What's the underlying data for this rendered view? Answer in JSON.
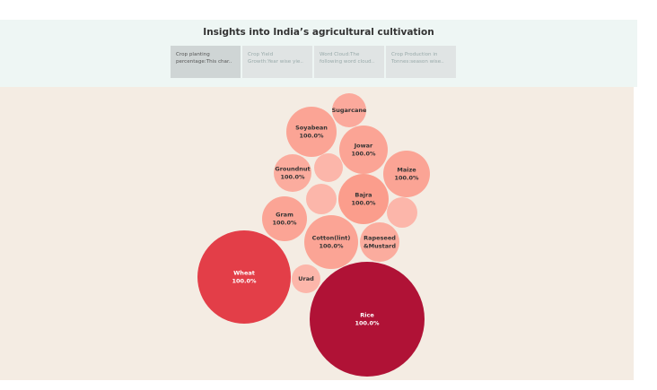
{
  "page": {
    "title": "Insights into India’s agricultural cultivation"
  },
  "tabs": [
    {
      "line1": "Crop planting",
      "line2": "percentage:This char..",
      "active": true
    },
    {
      "line1": "Crop Yield",
      "line2": "Growth:Year wise yie..",
      "active": false
    },
    {
      "line1": "Word Cloud:The",
      "line2": "following word cloud..",
      "active": false
    },
    {
      "line1": "Crop Production in",
      "line2": "Tonnes:season wise..",
      "active": false
    }
  ],
  "chart_data": {
    "type": "bubble",
    "title": "",
    "bubbles": [
      {
        "name": "Sugarcane",
        "label": "",
        "color": "#fba99c"
      },
      {
        "name": "Soyabean",
        "label": "100.0%",
        "color": "#fba495"
      },
      {
        "name": "Jowar",
        "label": "100.0%",
        "color": "#fba495"
      },
      {
        "name": "Maize",
        "label": "100.0%",
        "color": "#fba495"
      },
      {
        "name": "Groundnut",
        "label": "100.0%",
        "color": "#fbac9e"
      },
      {
        "name": "",
        "label": "",
        "color": "#fcb6aa"
      },
      {
        "name": "Bajra",
        "label": "100.0%",
        "color": "#fb9d8c"
      },
      {
        "name": "",
        "label": "",
        "color": "#fcb6aa"
      },
      {
        "name": "",
        "label": "",
        "color": "#fcb6aa"
      },
      {
        "name": "Gram",
        "label": "100.0%",
        "color": "#fba495"
      },
      {
        "name": "Cotton(lint)",
        "label": "100.0%",
        "color": "#fba495"
      },
      {
        "name": "Rapeseed &Mustard",
        "label": "",
        "color": "#fbac9e"
      },
      {
        "name": "Wheat",
        "label": "100.0%",
        "color": "#e33e48"
      },
      {
        "name": "Urad",
        "label": "",
        "color": "#fcb6aa"
      },
      {
        "name": "Rice",
        "label": "100.0%",
        "color": "#b01236"
      }
    ]
  }
}
